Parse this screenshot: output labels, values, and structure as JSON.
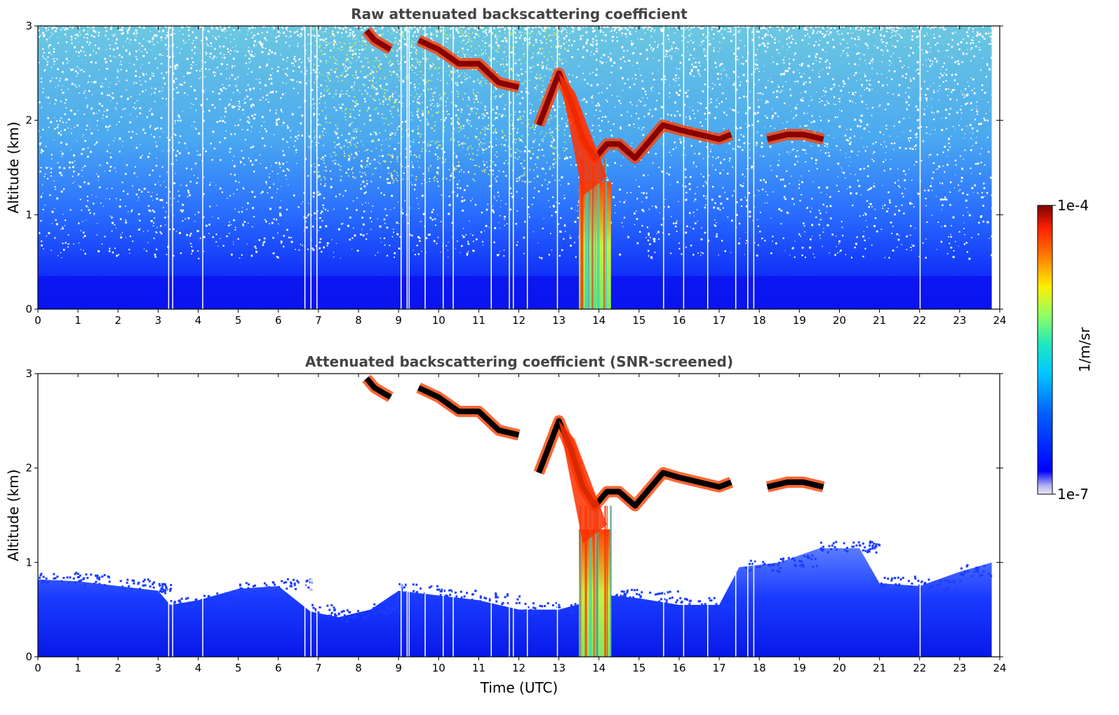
{
  "chart_data": [
    {
      "type": "heatmap",
      "title": "Raw attenuated backscattering coefficient",
      "xlabel": "",
      "ylabel": "Altitude (km)",
      "xlim": [
        0,
        24
      ],
      "ylim": [
        0,
        3
      ],
      "x_ticks": [
        "0",
        "1",
        "2",
        "3",
        "4",
        "5",
        "6",
        "7",
        "8",
        "9",
        "10",
        "11",
        "12",
        "13",
        "14",
        "15",
        "16",
        "17",
        "18",
        "19",
        "20",
        "21",
        "22",
        "23",
        "24"
      ],
      "y_ticks": [
        "0",
        "1",
        "2",
        "3"
      ],
      "features": {
        "cloud_layer": {
          "times": [
            8.2,
            8.4,
            8.8,
            9.5,
            10.0,
            10.5,
            11.0,
            11.5,
            12.0,
            12.5,
            13.0,
            13.3,
            13.6,
            13.9,
            14.2,
            14.5,
            14.9,
            15.2,
            15.6,
            16.0,
            16.5,
            17.0,
            17.3,
            18.2,
            18.7,
            19.1,
            19.6
          ],
          "altitudes_km": [
            2.95,
            2.85,
            2.75,
            2.85,
            2.75,
            2.6,
            2.6,
            2.4,
            2.35,
            1.95,
            2.5,
            2.2,
            1.8,
            1.6,
            1.75,
            1.75,
            1.6,
            1.75,
            1.95,
            1.9,
            1.85,
            1.8,
            1.85,
            1.8,
            1.85,
            1.85,
            1.8
          ]
        },
        "precipitation_band_hours": [
          13.5,
          14.3
        ],
        "boundary_layer_top_km": 0.35,
        "noise_floor": "noisy"
      }
    },
    {
      "type": "heatmap",
      "title": "Attenuated backscattering coefficient (SNR-screened)",
      "xlabel": "Time (UTC)",
      "ylabel": "Altitude (km)",
      "xlim": [
        0,
        24
      ],
      "ylim": [
        0,
        3
      ],
      "x_ticks": [
        "0",
        "1",
        "2",
        "3",
        "4",
        "5",
        "6",
        "7",
        "8",
        "9",
        "10",
        "11",
        "12",
        "13",
        "14",
        "15",
        "16",
        "17",
        "18",
        "19",
        "20",
        "21",
        "22",
        "23",
        "24"
      ],
      "y_ticks": [
        "0",
        "1",
        "2",
        "3"
      ],
      "features": {
        "boundary_layer": {
          "times": [
            0,
            1,
            2,
            3,
            3.3,
            4,
            5,
            6,
            6.8,
            7.5,
            8.3,
            9,
            10,
            11,
            12,
            13,
            14.3,
            15,
            16,
            17,
            17.5,
            18.5,
            19.5,
            20.5,
            21,
            22,
            23,
            23.8
          ],
          "top_km": [
            0.82,
            0.8,
            0.75,
            0.7,
            0.55,
            0.6,
            0.72,
            0.75,
            0.48,
            0.42,
            0.5,
            0.7,
            0.65,
            0.6,
            0.5,
            0.5,
            0.65,
            0.62,
            0.55,
            0.55,
            0.95,
            1.0,
            1.15,
            1.15,
            0.78,
            0.75,
            0.9,
            1.0
          ]
        },
        "precipitation_band_hours": [
          13.5,
          14.3
        ]
      }
    }
  ],
  "colorbar": {
    "label": "1/m/sr",
    "max_label": "1e-4",
    "min_label": "1e-7",
    "colors": [
      "#e8e8f8",
      "#b0b0f0",
      "#0000ff",
      "#0090ff",
      "#00e0e0",
      "#80ff80",
      "#ffff00",
      "#ff8000",
      "#ff2000",
      "#800000"
    ]
  }
}
